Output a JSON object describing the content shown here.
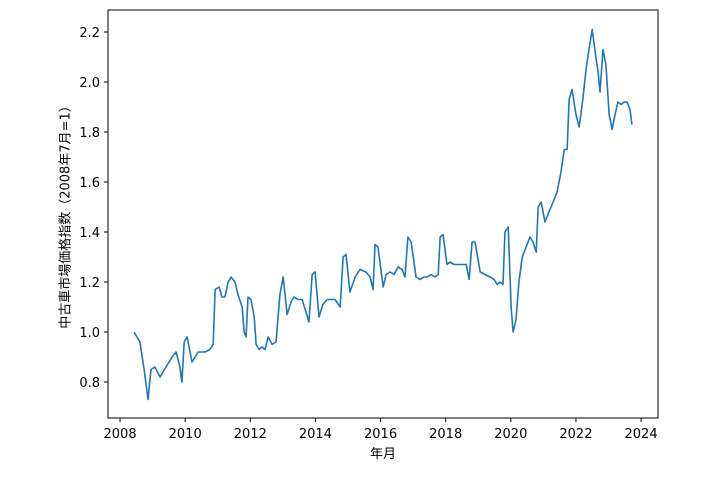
{
  "chart_data": {
    "type": "line",
    "x_label": "年月",
    "y_label": "中古車市場価格指数（2008年7月=1）",
    "xlim": [
      2007.63,
      2024.52
    ],
    "ylim": [
      0.656,
      2.288
    ],
    "xticks": [
      2008,
      2010,
      2012,
      2014,
      2016,
      2018,
      2020,
      2022,
      2024
    ],
    "yticks": [
      0.8,
      {
        "value": 1.0,
        "label": "1.0"
      },
      1.2,
      1.4,
      1.6,
      1.8,
      {
        "value": 2.0,
        "label": "2.0"
      },
      2.2
    ],
    "series": [
      {
        "color": "#1f77b4",
        "x": [
          2008.43,
          2008.61,
          2008.74,
          2008.86,
          2008.95,
          2009.07,
          2009.23,
          2009.41,
          2009.6,
          2009.72,
          2009.84,
          2009.9,
          2009.97,
          2010.06,
          2010.21,
          2010.4,
          2010.61,
          2010.76,
          2010.86,
          2010.92,
          2011.04,
          2011.13,
          2011.22,
          2011.32,
          2011.41,
          2011.53,
          2011.62,
          2011.75,
          2011.81,
          2011.87,
          2011.93,
          2012.02,
          2012.12,
          2012.18,
          2012.27,
          2012.36,
          2012.45,
          2012.55,
          2012.67,
          2012.79,
          2012.91,
          2013.01,
          2013.13,
          2013.25,
          2013.34,
          2013.47,
          2013.59,
          2013.71,
          2013.8,
          2013.9,
          2013.99,
          2014.11,
          2014.23,
          2014.36,
          2014.48,
          2014.6,
          2014.76,
          2014.85,
          2014.94,
          2015.06,
          2015.22,
          2015.37,
          2015.55,
          2015.68,
          2015.77,
          2015.83,
          2015.92,
          2016.08,
          2016.17,
          2016.29,
          2016.41,
          2016.54,
          2016.66,
          2016.75,
          2016.84,
          2016.94,
          2017.09,
          2017.21,
          2017.34,
          2017.43,
          2017.55,
          2017.67,
          2017.77,
          2017.83,
          2017.92,
          2018.04,
          2018.13,
          2018.26,
          2018.38,
          2018.5,
          2018.63,
          2018.72,
          2018.81,
          2018.9,
          2019.06,
          2019.21,
          2019.36,
          2019.49,
          2019.58,
          2019.67,
          2019.76,
          2019.82,
          2019.92,
          2020.01,
          2020.07,
          2020.16,
          2020.25,
          2020.35,
          2020.47,
          2020.59,
          2020.68,
          2020.78,
          2020.84,
          2020.93,
          2021.05,
          2021.17,
          2021.3,
          2021.42,
          2021.54,
          2021.64,
          2021.73,
          2021.79,
          2021.88,
          2022.0,
          2022.1,
          2022.22,
          2022.31,
          2022.4,
          2022.5,
          2022.59,
          2022.68,
          2022.74,
          2022.83,
          2022.92,
          2023.02,
          2023.11,
          2023.2,
          2023.29,
          2023.39,
          2023.48,
          2023.57,
          2023.66,
          2023.72
        ],
        "values": [
          1.0,
          0.96,
          0.85,
          0.73,
          0.85,
          0.86,
          0.82,
          0.86,
          0.9,
          0.92,
          0.86,
          0.8,
          0.96,
          0.98,
          0.88,
          0.92,
          0.92,
          0.93,
          0.95,
          1.17,
          1.18,
          1.14,
          1.14,
          1.2,
          1.22,
          1.2,
          1.15,
          1.1,
          1.0,
          0.98,
          1.14,
          1.13,
          1.06,
          0.95,
          0.93,
          0.94,
          0.93,
          0.98,
          0.95,
          0.96,
          1.15,
          1.22,
          1.07,
          1.12,
          1.14,
          1.13,
          1.13,
          1.08,
          1.04,
          1.23,
          1.24,
          1.06,
          1.11,
          1.13,
          1.13,
          1.13,
          1.1,
          1.3,
          1.31,
          1.16,
          1.22,
          1.25,
          1.24,
          1.22,
          1.17,
          1.35,
          1.34,
          1.18,
          1.23,
          1.24,
          1.23,
          1.26,
          1.25,
          1.22,
          1.38,
          1.36,
          1.22,
          1.21,
          1.22,
          1.22,
          1.23,
          1.22,
          1.23,
          1.38,
          1.39,
          1.27,
          1.28,
          1.27,
          1.27,
          1.27,
          1.27,
          1.21,
          1.36,
          1.36,
          1.24,
          1.23,
          1.22,
          1.21,
          1.19,
          1.2,
          1.19,
          1.4,
          1.42,
          1.1,
          1.0,
          1.05,
          1.2,
          1.3,
          1.34,
          1.38,
          1.36,
          1.32,
          1.5,
          1.52,
          1.44,
          1.48,
          1.52,
          1.56,
          1.64,
          1.73,
          1.73,
          1.93,
          1.97,
          1.87,
          1.82,
          1.94,
          2.05,
          2.13,
          2.21,
          2.12,
          2.04,
          1.96,
          2.13,
          2.07,
          1.87,
          1.81,
          1.87,
          1.92,
          1.91,
          1.92,
          1.92,
          1.89,
          1.83
        ]
      }
    ]
  }
}
